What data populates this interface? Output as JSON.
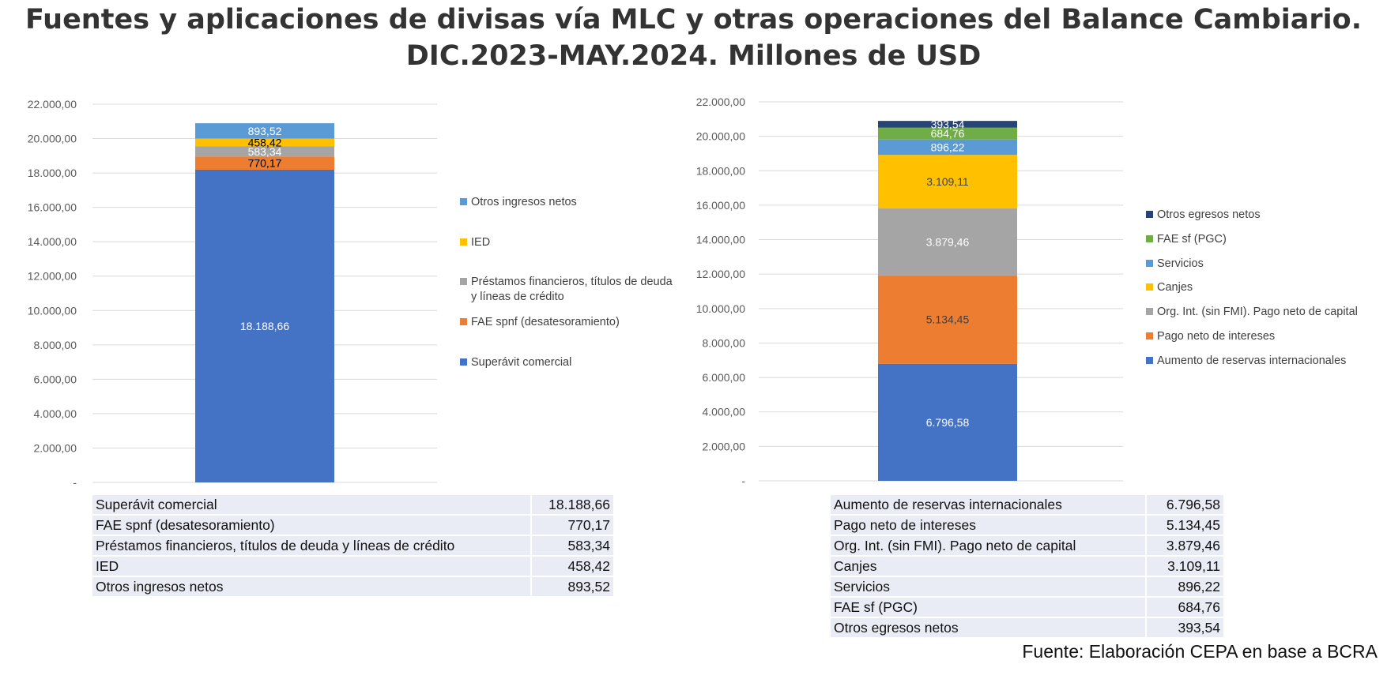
{
  "title_lines": [
    "Fuentes y aplicaciones de divisas vía MLC y otras operaciones del Balance Cambiario.",
    "DIC.2023-MAY.2024. Millones de USD"
  ],
  "source": "Fuente: Elaboración CEPA en base a BCRA",
  "colors": {
    "blue": "#4472c4",
    "orange": "#ed7d31",
    "gray": "#a5a5a5",
    "yellow": "#ffc000",
    "lightblue": "#5b9bd5",
    "green": "#70ad47",
    "navy": "#264478"
  },
  "chart_data": [
    {
      "type": "bar",
      "stacked": true,
      "ylim": [
        0,
        22000
      ],
      "y_ticks": [
        "-",
        "2.000,00",
        "4.000,00",
        "6.000,00",
        "8.000,00",
        "10.000,00",
        "12.000,00",
        "14.000,00",
        "16.000,00",
        "18.000,00",
        "20.000,00",
        "22.000,00"
      ],
      "grid": true,
      "legend_placement": "right",
      "series": [
        {
          "name": "Superávit comercial",
          "value": 18188.66,
          "label": "18.188,66",
          "color": "#4472c4",
          "label_color": "#ffffff"
        },
        {
          "name": "FAE spnf (desatesoramiento)",
          "value": 770.17,
          "label": "770,17",
          "color": "#ed7d31",
          "label_color": "#000000"
        },
        {
          "name": "Préstamos financieros, títulos de deuda y líneas de crédito",
          "value": 583.34,
          "label": "583,34",
          "color": "#a5a5a5",
          "label_color": "#ffffff"
        },
        {
          "name": "IED",
          "value": 458.42,
          "label": "458,42",
          "color": "#ffc000",
          "label_color": "#000000"
        },
        {
          "name": "Otros ingresos netos",
          "value": 893.52,
          "label": "893,52",
          "color": "#5b9bd5",
          "label_color": "#ffffff"
        }
      ],
      "legend_lines": [
        [
          "Otros ingresos netos"
        ],
        [
          "IED"
        ],
        [
          "Préstamos financieros, títulos de deuda",
          "y líneas de crédito"
        ],
        [
          "FAE spnf (desatesoramiento)"
        ],
        [
          "Superávit comercial"
        ]
      ]
    },
    {
      "type": "bar",
      "stacked": true,
      "ylim": [
        0,
        22000
      ],
      "y_ticks": [
        "-",
        "2.000,00",
        "4.000,00",
        "6.000,00",
        "8.000,00",
        "10.000,00",
        "12.000,00",
        "14.000,00",
        "16.000,00",
        "18.000,00",
        "20.000,00",
        "22.000,00"
      ],
      "grid": true,
      "legend_placement": "right",
      "series": [
        {
          "name": "Aumento de reservas internacionales",
          "value": 6796.58,
          "label": "6.796,58",
          "color": "#4472c4",
          "label_color": "#ffffff"
        },
        {
          "name": "Pago neto de intereses",
          "value": 5134.45,
          "label": "5.134,45",
          "color": "#ed7d31",
          "label_color": "#404040"
        },
        {
          "name": "Org. Int. (sin FMI). Pago neto de capital",
          "value": 3879.46,
          "label": "3.879,46",
          "color": "#a5a5a5",
          "label_color": "#ffffff"
        },
        {
          "name": "Canjes",
          "value": 3109.11,
          "label": "3.109,11",
          "color": "#ffc000",
          "label_color": "#404040"
        },
        {
          "name": "Servicios",
          "value": 896.22,
          "label": "896,22",
          "color": "#5b9bd5",
          "label_color": "#ffffff"
        },
        {
          "name": "FAE sf (PGC)",
          "value": 684.76,
          "label": "684,76",
          "color": "#70ad47",
          "label_color": "#ffffff"
        },
        {
          "name": "Otros egresos netos",
          "value": 393.54,
          "label": "393,54",
          "color": "#264478",
          "label_color": "#ffffff"
        }
      ],
      "legend_lines": [
        [
          "Otros egresos netos"
        ],
        [
          "FAE sf (PGC)"
        ],
        [
          "Servicios"
        ],
        [
          "Canjes"
        ],
        [
          "Org. Int. (sin FMI). Pago neto de capital"
        ],
        [
          "Pago neto de intereses"
        ],
        [
          "Aumento de reservas internacionales"
        ]
      ]
    }
  ],
  "tables": [
    {
      "rows": [
        {
          "label": "Superávit comercial",
          "value": "18.188,66"
        },
        {
          "label": "FAE spnf (desatesoramiento)",
          "value": "770,17"
        },
        {
          "label": "Préstamos financieros, títulos de deuda y líneas de crédito",
          "value": "583,34"
        },
        {
          "label": "IED",
          "value": "458,42"
        },
        {
          "label": "Otros ingresos netos",
          "value": "893,52"
        }
      ]
    },
    {
      "rows": [
        {
          "label": "Aumento de reservas internacionales",
          "value": "6.796,58"
        },
        {
          "label": "Pago neto de intereses",
          "value": "5.134,45"
        },
        {
          "label": "Org. Int. (sin FMI). Pago neto de capital",
          "value": "3.879,46"
        },
        {
          "label": "Canjes",
          "value": "3.109,11"
        },
        {
          "label": "Servicios",
          "value": "896,22"
        },
        {
          "label": "FAE sf (PGC)",
          "value": "684,76"
        },
        {
          "label": "Otros egresos netos",
          "value": "393,54"
        }
      ]
    }
  ]
}
